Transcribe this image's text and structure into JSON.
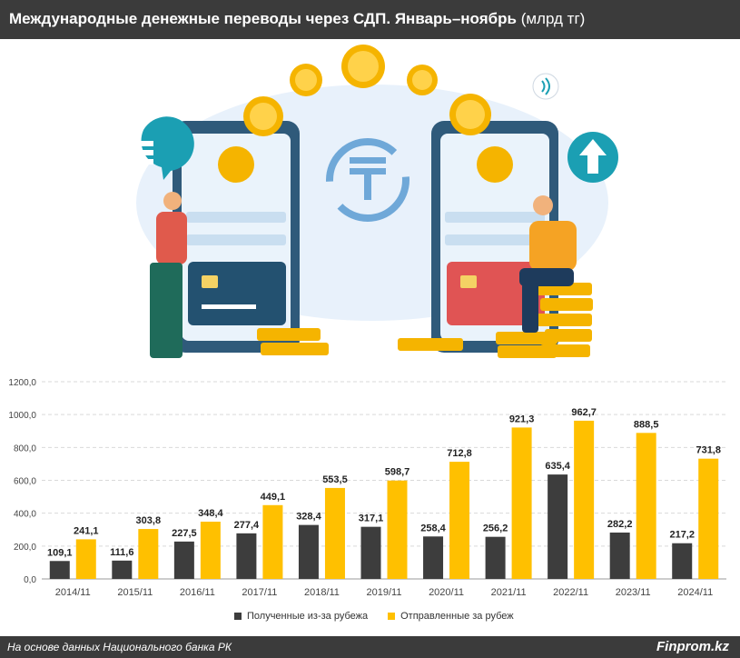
{
  "header": {
    "title": "Международные денежные переводы через СДП. Январь–ноябрь",
    "unit": "(млрд тг)"
  },
  "colors": {
    "received": "#3d3d3d",
    "sent": "#ffc000",
    "header_bg": "#3b3b3b"
  },
  "illustration": {
    "icons": [
      "tenge-exchange-icon",
      "phone-icon",
      "coin-icon",
      "bank-card-icon",
      "money-stack-icon",
      "upload-arrow-icon",
      "contactless-icon"
    ]
  },
  "chart_data": {
    "type": "bar",
    "categories": [
      "2014/11",
      "2015/11",
      "2016/11",
      "2017/11",
      "2018/11",
      "2019/11",
      "2020/11",
      "2021/11",
      "2022/11",
      "2023/11",
      "2024/11"
    ],
    "series": [
      {
        "name": "Полученные из-за рубежа",
        "values": [
          109.1,
          111.6,
          227.5,
          277.4,
          328.4,
          317.1,
          258.4,
          256.2,
          635.4,
          282.2,
          217.2
        ],
        "labels": [
          "109,1",
          "111,6",
          "227,5",
          "277,4",
          "328,4",
          "317,1",
          "258,4",
          "256,2",
          "635,4",
          "282,2",
          "217,2"
        ]
      },
      {
        "name": "Отправленные за рубеж",
        "values": [
          241.1,
          303.8,
          348.4,
          449.1,
          553.5,
          598.7,
          712.8,
          921.3,
          962.7,
          888.5,
          731.8
        ],
        "labels": [
          "241,1",
          "303,8",
          "348,4",
          "449,1",
          "553,5",
          "598,7",
          "712,8",
          "921,3",
          "962,7",
          "888,5",
          "731,8"
        ]
      }
    ],
    "yticks": [
      "0,0",
      "200,0",
      "400,0",
      "600,0",
      "800,0",
      "1000,0",
      "1200,0"
    ],
    "ylim": [
      0,
      1200
    ],
    "grid": true,
    "legend_position": "bottom"
  },
  "footer": {
    "source": "На основе данных Национального банка РК",
    "brand": "Finprom.kz"
  }
}
